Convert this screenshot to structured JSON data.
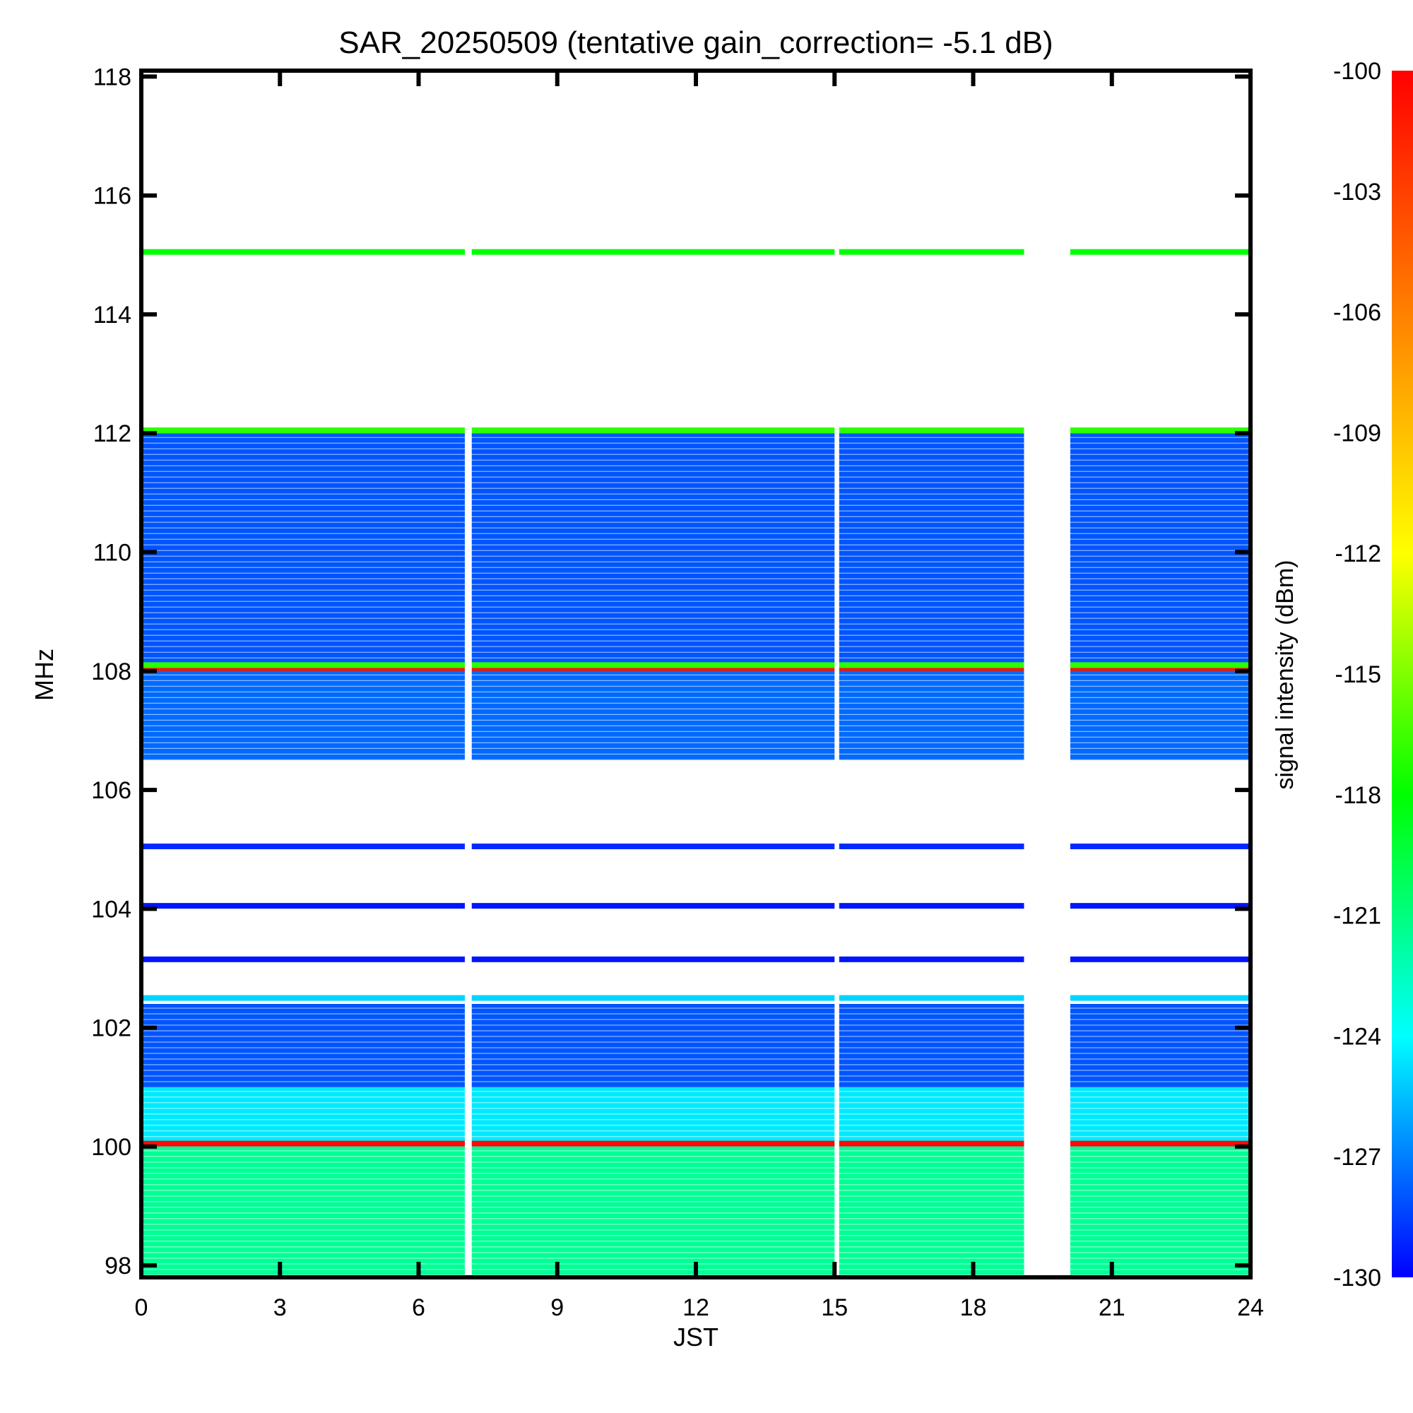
{
  "chart_data": {
    "type": "heatmap",
    "title": "SAR_20250509 (tentative gain_correction= -5.1 dB)",
    "xlabel": "JST",
    "ylabel": "MHz",
    "colorbar_label": "signal intensity (dBm)",
    "xlim": [
      0,
      24
    ],
    "ylim": [
      97.8,
      118.1
    ],
    "x_ticks": [
      0,
      3,
      6,
      9,
      12,
      15,
      18,
      21,
      24
    ],
    "y_ticks": [
      98,
      100,
      102,
      104,
      106,
      108,
      110,
      112,
      114,
      116,
      118
    ],
    "colorbar_range": [
      -130,
      -100
    ],
    "colorbar_ticks": [
      -100,
      -103,
      -106,
      -109,
      -112,
      -115,
      -118,
      -121,
      -124,
      -127,
      -130
    ],
    "colormap": [
      "#0000ff",
      "#00ffff",
      "#00ff00",
      "#ffff00",
      "#ff8000",
      "#ff0000"
    ],
    "data_gaps_jst": [
      [
        7.0,
        7.15
      ],
      [
        15.0,
        15.1
      ],
      [
        19.1,
        20.1
      ]
    ],
    "noise_floor_regions": [
      {
        "freq_range_mhz": [
          97.8,
          100.0
        ],
        "dbm": -121.5
      },
      {
        "freq_range_mhz": [
          100.0,
          101.0
        ],
        "dbm": -124.5
      },
      {
        "freq_range_mhz": [
          101.0,
          102.4
        ],
        "dbm": -128.0
      },
      {
        "freq_range_mhz": [
          106.5,
          108.1
        ],
        "dbm": -127.5
      },
      {
        "freq_range_mhz": [
          108.1,
          112.0
        ],
        "dbm": -128.0
      }
    ],
    "strong_signals": [
      {
        "freq_mhz": 100.05,
        "dbm": -100.5
      },
      {
        "freq_mhz": 108.05,
        "dbm": -101.0
      },
      {
        "freq_mhz": 108.1,
        "dbm": -117.0
      },
      {
        "freq_mhz": 112.05,
        "dbm": -117.0
      },
      {
        "freq_mhz": 115.05,
        "dbm": -118.0
      },
      {
        "freq_mhz": 102.5,
        "dbm": -125.0
      },
      {
        "freq_mhz": 105.05,
        "dbm": -129.0
      },
      {
        "freq_mhz": 104.05,
        "dbm": -129.5
      },
      {
        "freq_mhz": 103.15,
        "dbm": -129.5
      }
    ]
  }
}
